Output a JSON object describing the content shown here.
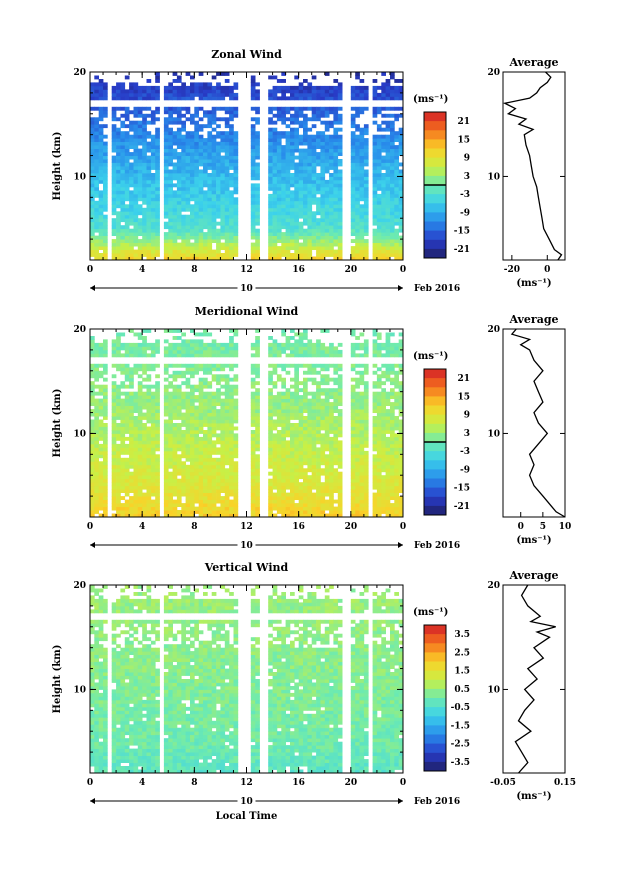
{
  "chart_data": [
    {
      "type": "heatmap",
      "title": "Zonal Wind",
      "ylabel": "Height (km)",
      "x_ticks": [
        "0",
        "4",
        "8",
        "12",
        "16",
        "20",
        "0"
      ],
      "y_ticks": [
        "10",
        "20"
      ],
      "ylim": [
        2,
        20
      ],
      "date_bar_label": "10",
      "date_label": "Feb 2016",
      "colorbar": {
        "unit": "(ms⁻¹)",
        "ticks": [
          "21",
          "15",
          "9",
          "3",
          "-3",
          "-9",
          "-15",
          "-21"
        ],
        "range": [
          -24,
          24
        ],
        "zero_contour": true
      },
      "field": {
        "low_level_value": 12,
        "mid_level_value": -3,
        "upper_level_value": -10,
        "top_value": -20
      },
      "profile": {
        "title": "Average",
        "xlabel": "(ms⁻¹)",
        "x_ticks": [
          "-20",
          "0"
        ],
        "xlim": [
          -25,
          10
        ],
        "heights": [
          2,
          2.5,
          3,
          4,
          5,
          6,
          7,
          8,
          9,
          10,
          11,
          12,
          13,
          14,
          14.5,
          15,
          15.5,
          16,
          16.5,
          17,
          17.5,
          18,
          18.5,
          19,
          19.5,
          20
        ],
        "values": [
          6,
          8,
          4,
          1,
          -2,
          -3,
          -4,
          -5,
          -6,
          -8,
          -9,
          -10,
          -12,
          -13,
          -8,
          -16,
          -12,
          -22,
          -18,
          -24,
          -10,
          -6,
          -4,
          0,
          2,
          -1
        ]
      }
    },
    {
      "type": "heatmap",
      "title": "Meridional Wind",
      "ylabel": "Height (km)",
      "x_ticks": [
        "0",
        "4",
        "8",
        "12",
        "16",
        "20",
        "0"
      ],
      "y_ticks": [
        "10",
        "20"
      ],
      "ylim": [
        2,
        20
      ],
      "date_bar_label": "10",
      "date_label": "Feb 2016",
      "colorbar": {
        "unit": "(ms⁻¹)",
        "ticks": [
          "21",
          "15",
          "9",
          "3",
          "-3",
          "-9",
          "-15",
          "-21"
        ],
        "range": [
          -24,
          24
        ],
        "zero_contour": true
      },
      "field": {
        "low_level_value": 12,
        "mid_level_value": 8,
        "upper_level_value": 3,
        "top_value": 0
      },
      "profile": {
        "title": "Average",
        "xlabel": "(ms⁻¹)",
        "x_ticks": [
          "0",
          "5",
          "10"
        ],
        "xlim": [
          -4,
          10
        ],
        "heights": [
          2,
          2.5,
          3,
          4,
          5,
          6,
          7,
          8,
          9,
          10,
          11,
          12,
          13,
          14,
          15,
          16,
          17,
          18,
          18.5,
          19,
          19.5,
          20
        ],
        "values": [
          10,
          8,
          7,
          5,
          3,
          2,
          3,
          2,
          4,
          6,
          4,
          3,
          5,
          4,
          3,
          5,
          3,
          2,
          0,
          2,
          -2,
          -1
        ]
      }
    },
    {
      "type": "heatmap",
      "title": "Vertical Wind",
      "ylabel": "Height (km)",
      "xlabel": "Local Time",
      "x_ticks": [
        "0",
        "4",
        "8",
        "12",
        "16",
        "20",
        "0"
      ],
      "y_ticks": [
        "10",
        "20"
      ],
      "ylim": [
        2,
        20
      ],
      "date_bar_label": "10",
      "date_label": "Feb 2016",
      "colorbar": {
        "unit": "(ms⁻¹)",
        "ticks": [
          "3.5",
          "2.5",
          "1.5",
          "0.5",
          "-0.5",
          "-1.5",
          "-2.5",
          "-3.5"
        ],
        "range": [
          -4,
          4
        ],
        "zero_contour": false
      },
      "field": {
        "low_level_value": -0.3,
        "mid_level_value": 0,
        "upper_level_value": 0.3,
        "top_value": 0.5
      },
      "profile": {
        "title": "Average",
        "xlabel": "(ms⁻¹)",
        "x_ticks": [
          "-0.05",
          "0.15"
        ],
        "xlim": [
          -0.05,
          0.15
        ],
        "heights": [
          2,
          3,
          4,
          5,
          6,
          7,
          8,
          9,
          10,
          11,
          12,
          13,
          14,
          15,
          15.5,
          16,
          16.5,
          17,
          18,
          19,
          20
        ],
        "values": [
          0.0,
          0.03,
          0.01,
          -0.01,
          0.04,
          0.0,
          0.02,
          0.05,
          0.02,
          0.06,
          0.03,
          0.08,
          0.05,
          0.1,
          0.06,
          0.12,
          0.04,
          0.07,
          0.03,
          0.01,
          0.03
        ]
      }
    }
  ]
}
